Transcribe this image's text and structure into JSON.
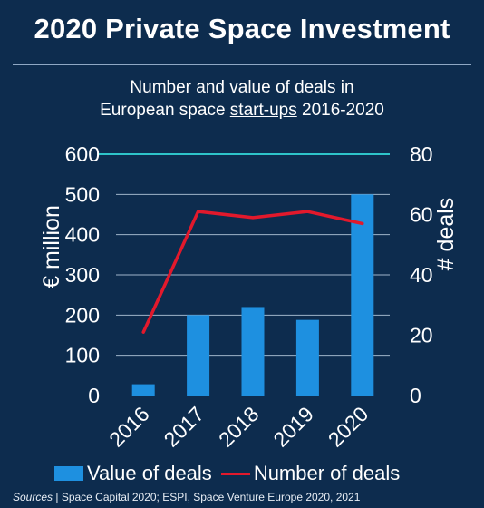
{
  "header": {
    "title": "2020 Private Space Investment"
  },
  "chart_data": {
    "type": "bar",
    "title_line1": "Number and value of deals in",
    "title_line2_pre": "European space ",
    "title_line2_underlined": "start-ups",
    "title_line2_post": " 2016-2020",
    "categories": [
      "2016",
      "2017",
      "2018",
      "2019",
      "2020"
    ],
    "series": [
      {
        "name": "Value of deals",
        "type": "bar",
        "axis": "left",
        "values": [
          28,
          200,
          220,
          188,
          500
        ]
      },
      {
        "name": "Number of deals",
        "type": "line",
        "axis": "right",
        "values": [
          21,
          61,
          59,
          61,
          57
        ]
      }
    ],
    "ylabel": "€ million",
    "y2label": "# deals",
    "ylim": [
      0,
      600
    ],
    "y2lim": [
      0,
      80
    ],
    "yticks": [
      "0",
      "100",
      "200",
      "300",
      "400",
      "500",
      "600"
    ],
    "y2ticks": [
      "0",
      "20",
      "40",
      "60",
      "80"
    ],
    "colors": {
      "bar": "#1e90e0",
      "line": "#e2192c",
      "top_gridline": "#2ec4c9",
      "gridline": "#9fb4c9"
    },
    "grid": true,
    "legend_position": "bottom"
  },
  "footer": {
    "sources_label": "Sources",
    "sources_text": " | Space Capital 2020; ESPI, Space Venture Europe 2020, 2021"
  }
}
